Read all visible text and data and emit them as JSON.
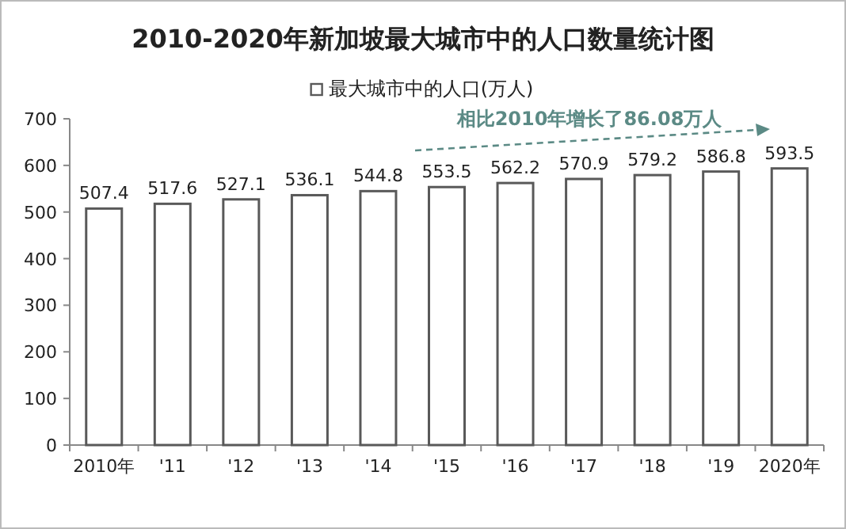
{
  "chart_data": {
    "type": "bar",
    "title": "2010-2020年新加坡最大城市中的人口数量统计图",
    "categories": [
      "2010年",
      "'11",
      "'12",
      "'13",
      "'14",
      "'15",
      "'16",
      "'17",
      "'18",
      "'19",
      "2020年"
    ],
    "series": [
      {
        "name": "最大城市中的人口(万人)",
        "color": "#ffffff",
        "values": [
          507.4,
          517.6,
          527.1,
          536.1,
          544.8,
          553.5,
          562.2,
          570.9,
          579.2,
          586.8,
          593.5
        ]
      }
    ],
    "ylim": [
      0,
      700
    ],
    "yticks": [
      0,
      100,
      200,
      300,
      400,
      500,
      600,
      700
    ],
    "data_labels": true,
    "legend": "top",
    "grid": false,
    "annotations": [
      "相比2010年增长了86.08万人"
    ]
  }
}
